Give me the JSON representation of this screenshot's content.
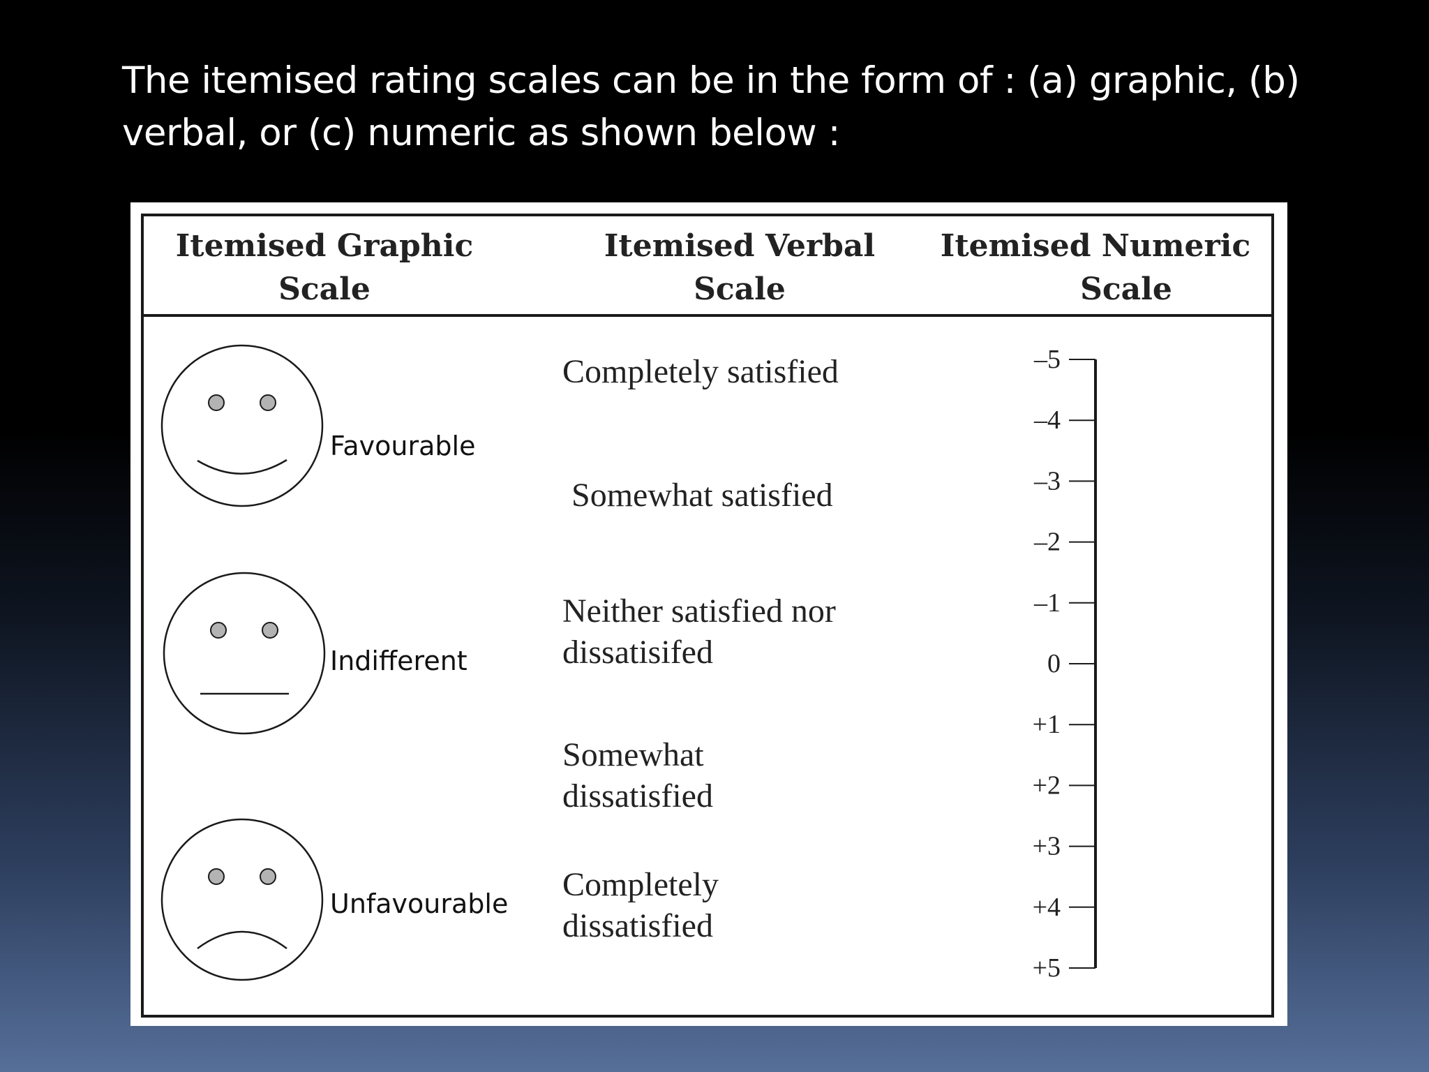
{
  "slide": {
    "title": "The itemised rating scales can be in the form of : (a) graphic, (b) verbal, or (c) numeric as shown below :"
  },
  "figure": {
    "columns": [
      {
        "line1": "Itemised Graphic",
        "line2": "Scale"
      },
      {
        "line1": "Itemised  Verbal",
        "line2": "Scale"
      },
      {
        "line1": "Itemised  Numeric",
        "line2": "Scale"
      }
    ],
    "graphic_scale": [
      {
        "label": "Favourable",
        "icon": "smiling-face-icon"
      },
      {
        "label": "Indifferent",
        "icon": "neutral-face-icon"
      },
      {
        "label": "Unfavourable",
        "icon": "frowning-face-icon"
      }
    ],
    "verbal_scale": [
      {
        "lines": [
          "Completely satisfied"
        ]
      },
      {
        "lines": [
          "Somewhat satisfied"
        ]
      },
      {
        "lines": [
          "Neither satisfied nor",
          "dissatisifed"
        ]
      },
      {
        "lines": [
          "Somewhat",
          "dissatisfied"
        ]
      },
      {
        "lines": [
          "Completely",
          "dissatisfied"
        ]
      }
    ],
    "numeric_scale": {
      "ticks": [
        "–5",
        "–4",
        "–3",
        "–2",
        "–1",
        "0",
        "+1",
        "+2",
        "+3",
        "+4",
        "+5"
      ]
    }
  }
}
